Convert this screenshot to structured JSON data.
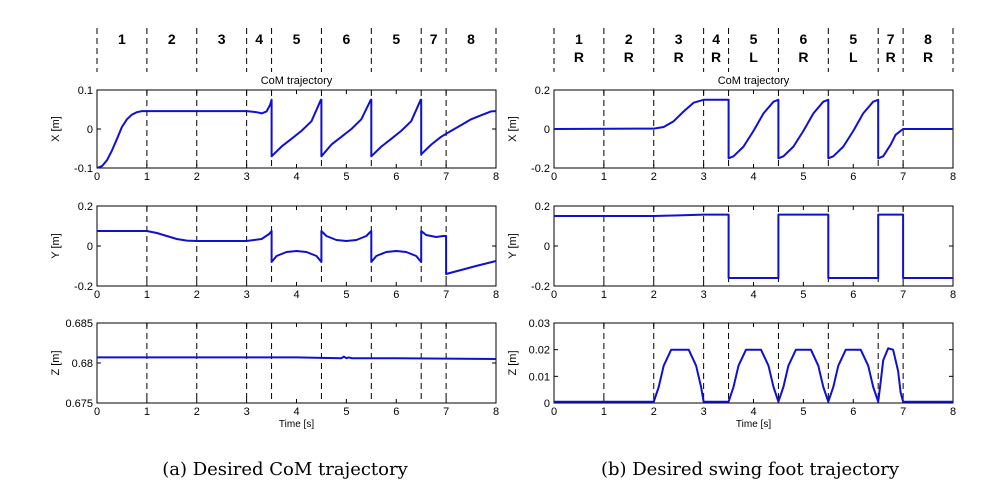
{
  "captions": {
    "a": "(a) Desired CoM trajectory",
    "b": "(b) Desired swing foot trajectory"
  },
  "colors": {
    "series": "#1010d0",
    "axes": "#000000",
    "phase_lines": "#000000"
  },
  "chart_data": [
    {
      "type": "line",
      "figure": "a",
      "title": "CoM trajectory",
      "xlabel": "Time [s]",
      "ylabel": "X [m]",
      "xlim": [
        0,
        8
      ],
      "ylim": [
        -0.1,
        0.1
      ],
      "xticks": [
        "0",
        "1",
        "2",
        "3",
        "4",
        "5",
        "6",
        "7",
        "8"
      ],
      "yticks": [
        "-0.1",
        "0",
        "0.1"
      ],
      "phase_boundaries": [
        1,
        2,
        3,
        3.5,
        4.5,
        5.5,
        6.5,
        7
      ],
      "phase_labels": [
        "1",
        "2",
        "3",
        "4",
        "5",
        "6",
        "5",
        "7",
        "8"
      ],
      "series": [
        {
          "x": [
            0,
            0.1,
            0.2,
            0.3,
            0.4,
            0.5,
            0.6,
            0.7,
            0.8,
            0.9,
            1.0,
            1.5,
            2.0,
            2.5,
            3.0,
            3.2,
            3.3,
            3.4,
            3.47,
            3.5,
            3.5,
            3.7,
            3.9,
            4.1,
            4.3,
            4.49,
            4.5,
            4.5,
            4.7,
            4.9,
            5.1,
            5.3,
            5.49,
            5.5,
            5.5,
            5.7,
            5.9,
            6.1,
            6.3,
            6.49,
            6.5,
            6.5,
            6.7,
            6.9,
            7.1,
            7.3,
            7.5,
            7.7,
            7.9,
            8.0
          ],
          "y": [
            -0.1,
            -0.095,
            -0.08,
            -0.055,
            -0.025,
            0.005,
            0.025,
            0.037,
            0.043,
            0.046,
            0.046,
            0.046,
            0.046,
            0.046,
            0.046,
            0.043,
            0.04,
            0.045,
            0.062,
            0.075,
            -0.07,
            -0.045,
            -0.025,
            -0.005,
            0.02,
            0.075,
            0.075,
            -0.07,
            -0.04,
            -0.02,
            0.0,
            0.025,
            0.075,
            0.075,
            -0.07,
            -0.045,
            -0.025,
            -0.005,
            0.02,
            0.075,
            0.075,
            -0.065,
            -0.04,
            -0.02,
            -0.005,
            0.01,
            0.025,
            0.035,
            0.045,
            0.046
          ]
        }
      ]
    },
    {
      "type": "line",
      "figure": "a",
      "ylabel": "Y [m]",
      "xlim": [
        0,
        8
      ],
      "ylim": [
        -0.2,
        0.2
      ],
      "xticks": [
        "0",
        "1",
        "2",
        "3",
        "4",
        "5",
        "6",
        "7",
        "8"
      ],
      "yticks": [
        "-0.2",
        "0",
        "0.2"
      ],
      "phase_boundaries": [
        1,
        2,
        3,
        3.5,
        4.5,
        5.5,
        6.5,
        7
      ],
      "series": [
        {
          "x": [
            0,
            1.0,
            1.2,
            1.4,
            1.6,
            1.8,
            2.0,
            2.5,
            3.0,
            3.3,
            3.45,
            3.5,
            3.5,
            3.6,
            3.8,
            4.0,
            4.2,
            4.4,
            4.5,
            4.5,
            4.6,
            4.8,
            5.0,
            5.2,
            5.4,
            5.5,
            5.5,
            5.6,
            5.8,
            6.0,
            6.2,
            6.4,
            6.5,
            6.5,
            6.6,
            6.8,
            6.95,
            7.0,
            7.0,
            7.3,
            7.6,
            8.0
          ],
          "y": [
            0.075,
            0.075,
            0.065,
            0.05,
            0.035,
            0.027,
            0.025,
            0.025,
            0.025,
            0.035,
            0.06,
            0.075,
            -0.08,
            -0.05,
            -0.03,
            -0.025,
            -0.03,
            -0.05,
            -0.08,
            0.075,
            0.05,
            0.03,
            0.025,
            0.03,
            0.05,
            0.075,
            -0.08,
            -0.05,
            -0.03,
            -0.025,
            -0.03,
            -0.05,
            -0.08,
            0.075,
            0.055,
            0.045,
            0.05,
            0.05,
            -0.14,
            -0.12,
            -0.1,
            -0.075
          ]
        }
      ]
    },
    {
      "type": "line",
      "figure": "a",
      "xlabel": "Time [s]",
      "ylabel": "Z [m]",
      "xlim": [
        0,
        8
      ],
      "ylim": [
        0.675,
        0.685
      ],
      "xticks": [
        "0",
        "1",
        "2",
        "3",
        "4",
        "5",
        "6",
        "7",
        "8"
      ],
      "yticks": [
        "0.675",
        "0.68",
        "0.685"
      ],
      "phase_boundaries": [
        1,
        2,
        3,
        3.5,
        4.5,
        5.5,
        6.5,
        7
      ],
      "series": [
        {
          "x": [
            0,
            4.0,
            4.9,
            4.95,
            5.0,
            5.05,
            5.1,
            6.0,
            8.0
          ],
          "y": [
            0.6807,
            0.6807,
            0.6806,
            0.6808,
            0.6806,
            0.6807,
            0.6806,
            0.6806,
            0.6805
          ]
        }
      ]
    },
    {
      "type": "line",
      "figure": "b",
      "title": "CoM trajectory",
      "ylabel": "X [m]",
      "xlim": [
        0,
        8
      ],
      "ylim": [
        -0.2,
        0.2
      ],
      "xticks": [
        "0",
        "1",
        "2",
        "3",
        "4",
        "5",
        "6",
        "7",
        "8"
      ],
      "yticks": [
        "-0.2",
        "0",
        "0.2"
      ],
      "phase_boundaries": [
        1,
        2,
        3,
        3.5,
        4.5,
        5.5,
        6.5,
        7
      ],
      "phase_labels": [
        "1",
        "2",
        "3",
        "4",
        "5",
        "6",
        "5",
        "7",
        "8"
      ],
      "phase_sides": [
        "R",
        "R",
        "R",
        "R",
        "L",
        "R",
        "L",
        "R",
        "R"
      ],
      "series": [
        {
          "x": [
            0,
            2.0,
            2.2,
            2.4,
            2.6,
            2.8,
            3.0,
            3.5,
            3.5,
            3.6,
            3.8,
            4.0,
            4.2,
            4.4,
            4.5,
            4.5,
            4.6,
            4.8,
            5.0,
            5.2,
            5.4,
            5.5,
            5.5,
            5.6,
            5.8,
            6.0,
            6.2,
            6.4,
            6.5,
            6.5,
            6.6,
            6.75,
            6.85,
            7.0,
            8.0
          ],
          "y": [
            0,
            0.002,
            0.01,
            0.04,
            0.09,
            0.135,
            0.15,
            0.15,
            -0.15,
            -0.14,
            -0.09,
            -0.01,
            0.08,
            0.14,
            0.15,
            -0.15,
            -0.14,
            -0.09,
            -0.01,
            0.08,
            0.14,
            0.15,
            -0.15,
            -0.14,
            -0.09,
            -0.01,
            0.08,
            0.14,
            0.15,
            -0.15,
            -0.14,
            -0.08,
            -0.03,
            0.0,
            0.0
          ]
        }
      ]
    },
    {
      "type": "line",
      "figure": "b",
      "ylabel": "Y [m]",
      "xlim": [
        0,
        8
      ],
      "ylim": [
        -0.2,
        0.2
      ],
      "xticks": [
        "0",
        "1",
        "2",
        "3",
        "4",
        "5",
        "6",
        "7",
        "8"
      ],
      "yticks": [
        "-0.2",
        "0",
        "0.2"
      ],
      "phase_boundaries": [
        1,
        2,
        3,
        3.5,
        4.5,
        5.5,
        6.5,
        7
      ],
      "series": [
        {
          "x": [
            0,
            2.0,
            2.5,
            3.0,
            3.5,
            3.5,
            4.5,
            4.5,
            5.5,
            5.5,
            6.5,
            6.5,
            7.0,
            7.0,
            8.0
          ],
          "y": [
            0.15,
            0.15,
            0.153,
            0.157,
            0.157,
            -0.16,
            -0.16,
            0.157,
            0.157,
            -0.16,
            -0.16,
            0.157,
            0.157,
            -0.16,
            -0.16
          ]
        }
      ]
    },
    {
      "type": "line",
      "figure": "b",
      "xlabel": "Time [s]",
      "ylabel": "Z [m]",
      "xlim": [
        0,
        8
      ],
      "ylim": [
        0,
        0.03
      ],
      "xticks": [
        "0",
        "1",
        "2",
        "3",
        "4",
        "5",
        "6",
        "7",
        "8"
      ],
      "yticks": [
        "0",
        "0.01",
        "0.02",
        "0.03"
      ],
      "phase_boundaries": [
        1,
        2,
        3,
        3.5,
        4.5,
        5.5,
        6.5,
        7
      ],
      "series": [
        {
          "x": [
            0,
            2.0,
            2.1,
            2.2,
            2.35,
            2.7,
            2.85,
            2.95,
            3.0,
            3.5,
            3.6,
            3.7,
            3.85,
            4.15,
            4.3,
            4.4,
            4.5,
            4.6,
            4.7,
            4.85,
            5.15,
            5.3,
            5.4,
            5.5,
            5.6,
            5.7,
            5.85,
            6.15,
            6.3,
            6.4,
            6.5,
            6.55,
            6.6,
            6.7,
            6.8,
            6.9,
            6.95,
            7.0,
            8.0
          ],
          "y": [
            0.0005,
            0.0005,
            0.006,
            0.014,
            0.02,
            0.02,
            0.014,
            0.006,
            0.0005,
            0.0005,
            0.006,
            0.014,
            0.02,
            0.02,
            0.014,
            0.006,
            0.0005,
            0.006,
            0.014,
            0.02,
            0.02,
            0.014,
            0.006,
            0.0005,
            0.006,
            0.014,
            0.02,
            0.02,
            0.014,
            0.006,
            0.0005,
            0.008,
            0.016,
            0.0205,
            0.02,
            0.012,
            0.004,
            0.0005,
            0.0005
          ]
        }
      ]
    }
  ]
}
